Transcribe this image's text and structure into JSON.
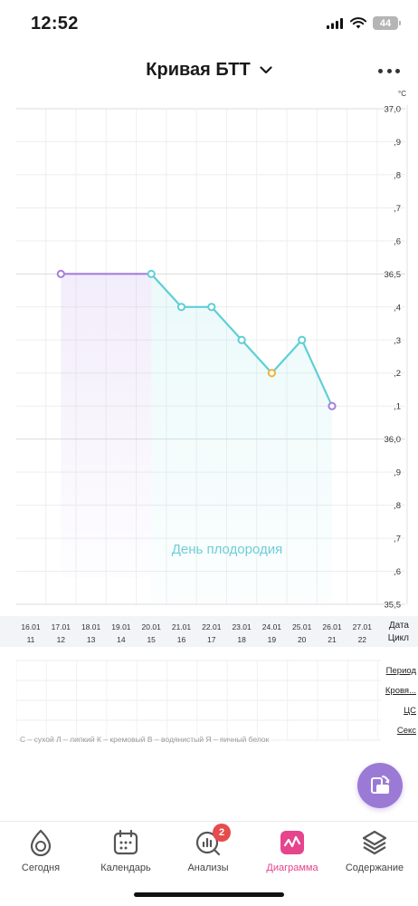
{
  "status_bar": {
    "time": "12:52",
    "battery": "44"
  },
  "header": {
    "title": "Кривая БТТ"
  },
  "chart_data": {
    "type": "line",
    "unit": "°C",
    "y_labels": [
      "37,0",
      ",9",
      ",8",
      ",7",
      ",6",
      "36,5",
      ",4",
      ",3",
      ",2",
      ",1",
      "36,0",
      ",9",
      ",8",
      ",7",
      ",6",
      "35,5"
    ],
    "ylim": [
      35.5,
      37.0
    ],
    "dates": [
      "16.01",
      "17.01",
      "18.01",
      "19.01",
      "20.01",
      "21.01",
      "22.01",
      "23.01",
      "24.01",
      "25.01",
      "26.01",
      "27.01"
    ],
    "cycle_days": [
      "11",
      "12",
      "13",
      "14",
      "15",
      "16",
      "17",
      "18",
      "19",
      "20",
      "21",
      "22"
    ],
    "series": [
      {
        "points": [
          {
            "x": "17.01",
            "y": 36.5
          },
          {
            "x": "20.01",
            "y": 36.5
          },
          {
            "x": "21.01",
            "y": 36.4
          },
          {
            "x": "22.01",
            "y": 36.4
          },
          {
            "x": "23.01",
            "y": 36.3
          },
          {
            "x": "24.01",
            "y": 36.2
          },
          {
            "x": "25.01",
            "y": 36.3
          },
          {
            "x": "26.01",
            "y": 36.1
          }
        ]
      }
    ],
    "point_colors": [
      "#a57fdc",
      "#5fcfd6",
      "#5fcfd6",
      "#5fcfd6",
      "#5fcfd6",
      "#f0b23d",
      "#5fcfd6",
      "#a57fdc"
    ],
    "line_colors": {
      "purple": "#a57fdc",
      "teal": "#5fcfd6"
    },
    "fertile_label": "День плодородия"
  },
  "rows": {
    "date": "Дата",
    "cycle": "Цикл"
  },
  "params": [
    "Период",
    "Кровя...",
    "ЦС",
    "Секс"
  ],
  "legend_note": "С – сухой Л – липкий К – кремовый В – водянистый Я – яичный белок",
  "tabs": [
    {
      "label": "Сегодня",
      "icon": "drop-icon"
    },
    {
      "label": "Календарь",
      "icon": "calendar-icon"
    },
    {
      "label": "Анализы",
      "icon": "analysis-icon",
      "badge": "2"
    },
    {
      "label": "Диаграмма",
      "icon": "chart-icon",
      "active": true
    },
    {
      "label": "Содержание",
      "icon": "layers-icon"
    }
  ],
  "colors": {
    "accent": "#e6448c",
    "fab": "#9b7ad6",
    "badge": "#e74c4c"
  }
}
